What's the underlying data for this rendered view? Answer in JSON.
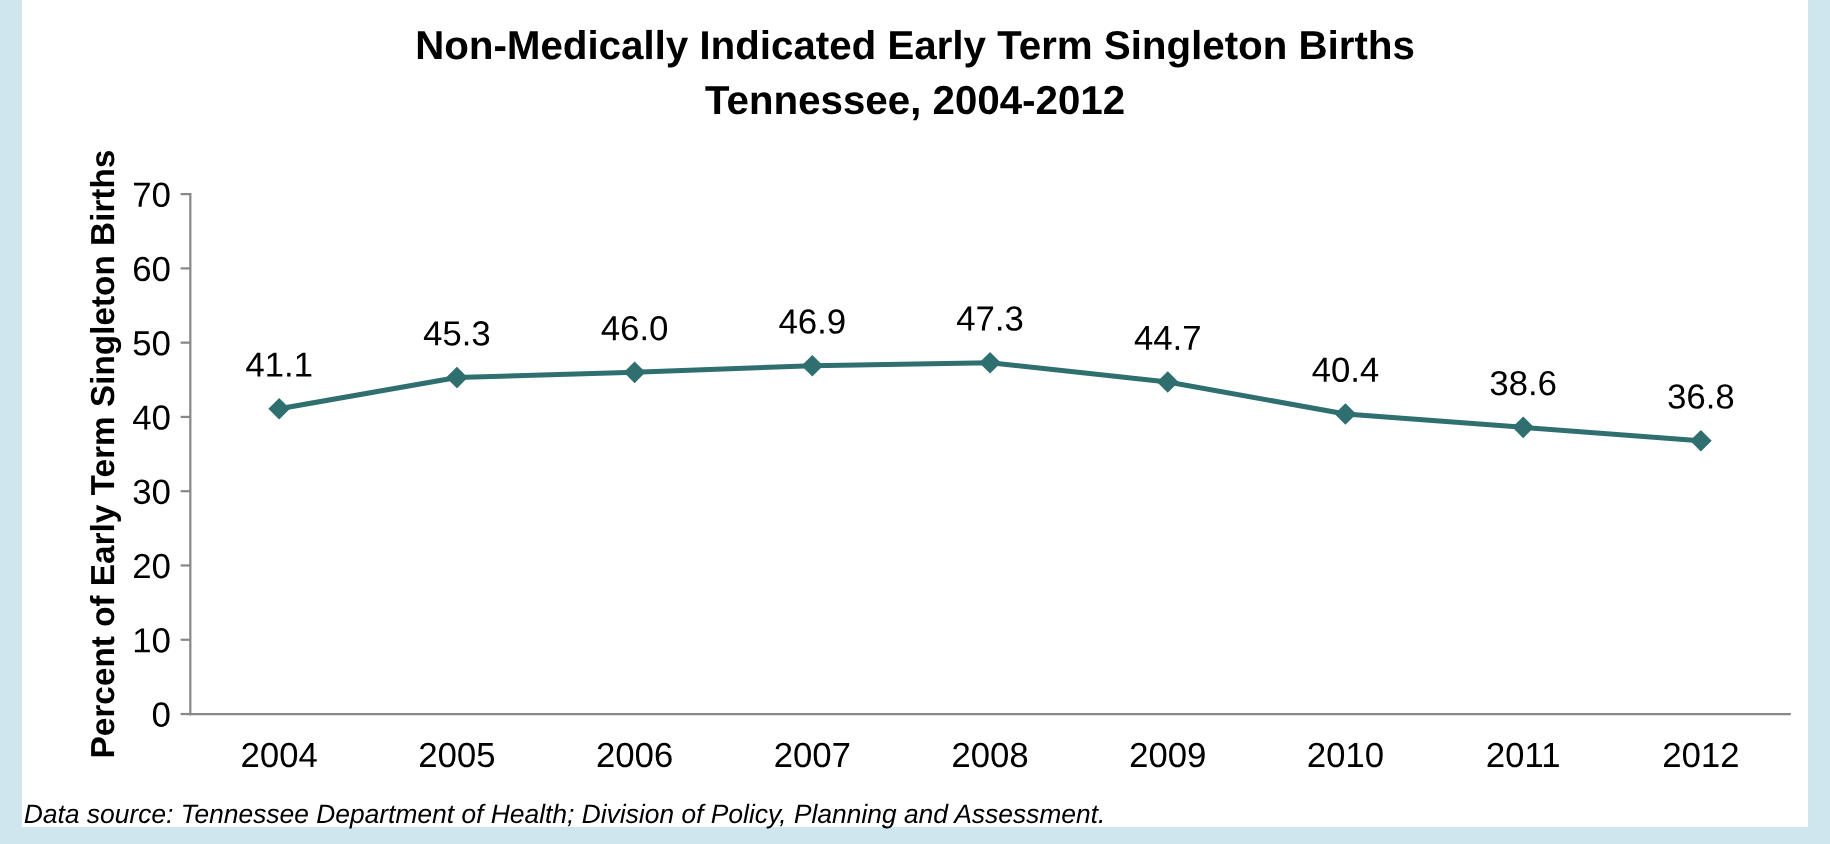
{
  "chart_data": {
    "type": "line",
    "title": "Non-Medically Indicated Early Term Singleton Births",
    "subtitle": "Tennessee, 2004-2012",
    "ylabel": "Percent of Early Term Singleton Births",
    "categories": [
      "2004",
      "2005",
      "2006",
      "2007",
      "2008",
      "2009",
      "2010",
      "2011",
      "2012"
    ],
    "series": [
      {
        "color": "#2f6f6f",
        "values": [
          41.1,
          45.3,
          46.0,
          46.9,
          47.3,
          44.7,
          40.4,
          38.6,
          36.8
        ],
        "value_labels": [
          "41.1",
          "45.3",
          "46.0",
          "46.9",
          "47.3",
          "44.7",
          "40.4",
          "38.6",
          "36.8"
        ]
      }
    ],
    "ylim": [
      0,
      70
    ],
    "yticks": [
      0,
      10,
      20,
      30,
      40,
      50,
      60,
      70
    ],
    "grid": false,
    "legend": false,
    "marker": "diamond",
    "line_style": "solid",
    "annotations": [
      "Data source: Tennessee Department of Health; Division of Policy, Planning and Assessment."
    ]
  }
}
